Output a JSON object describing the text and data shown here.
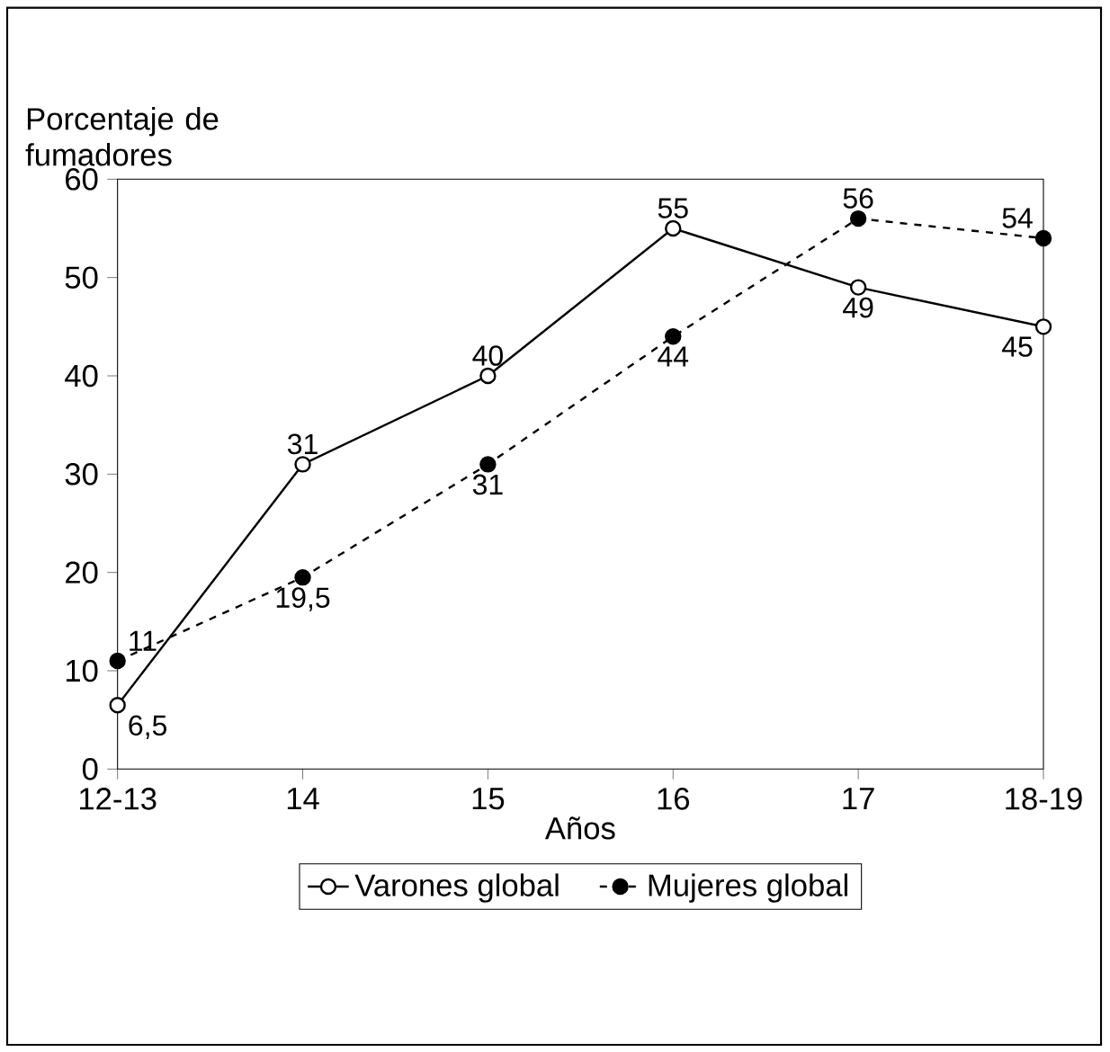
{
  "chart_data": {
    "type": "line",
    "xlabel": "Años",
    "ylabel": "Porcentaje de fumadores",
    "categories": [
      "12-13",
      "14",
      "15",
      "16",
      "17",
      "18-19"
    ],
    "series": [
      {
        "name": "Varones global",
        "color": "#000000",
        "line_style": "solid",
        "marker": "circle",
        "values": [
          6.5,
          31,
          40,
          55,
          49,
          45
        ],
        "value_labels": [
          "6,5",
          "31",
          "40",
          "55",
          "49",
          "45"
        ]
      },
      {
        "name": "Mujeres global",
        "color": "#000000",
        "line_style": "dashed",
        "marker": "circle",
        "values": [
          11,
          19.5,
          31,
          44,
          56,
          54
        ],
        "value_labels": [
          "11",
          "19,5",
          "31",
          "44",
          "56",
          "54"
        ]
      }
    ],
    "ylim": [
      0,
      60
    ],
    "yticks": [
      0,
      10,
      20,
      30,
      40,
      50,
      60
    ],
    "grid": false,
    "legend": "bottom"
  }
}
